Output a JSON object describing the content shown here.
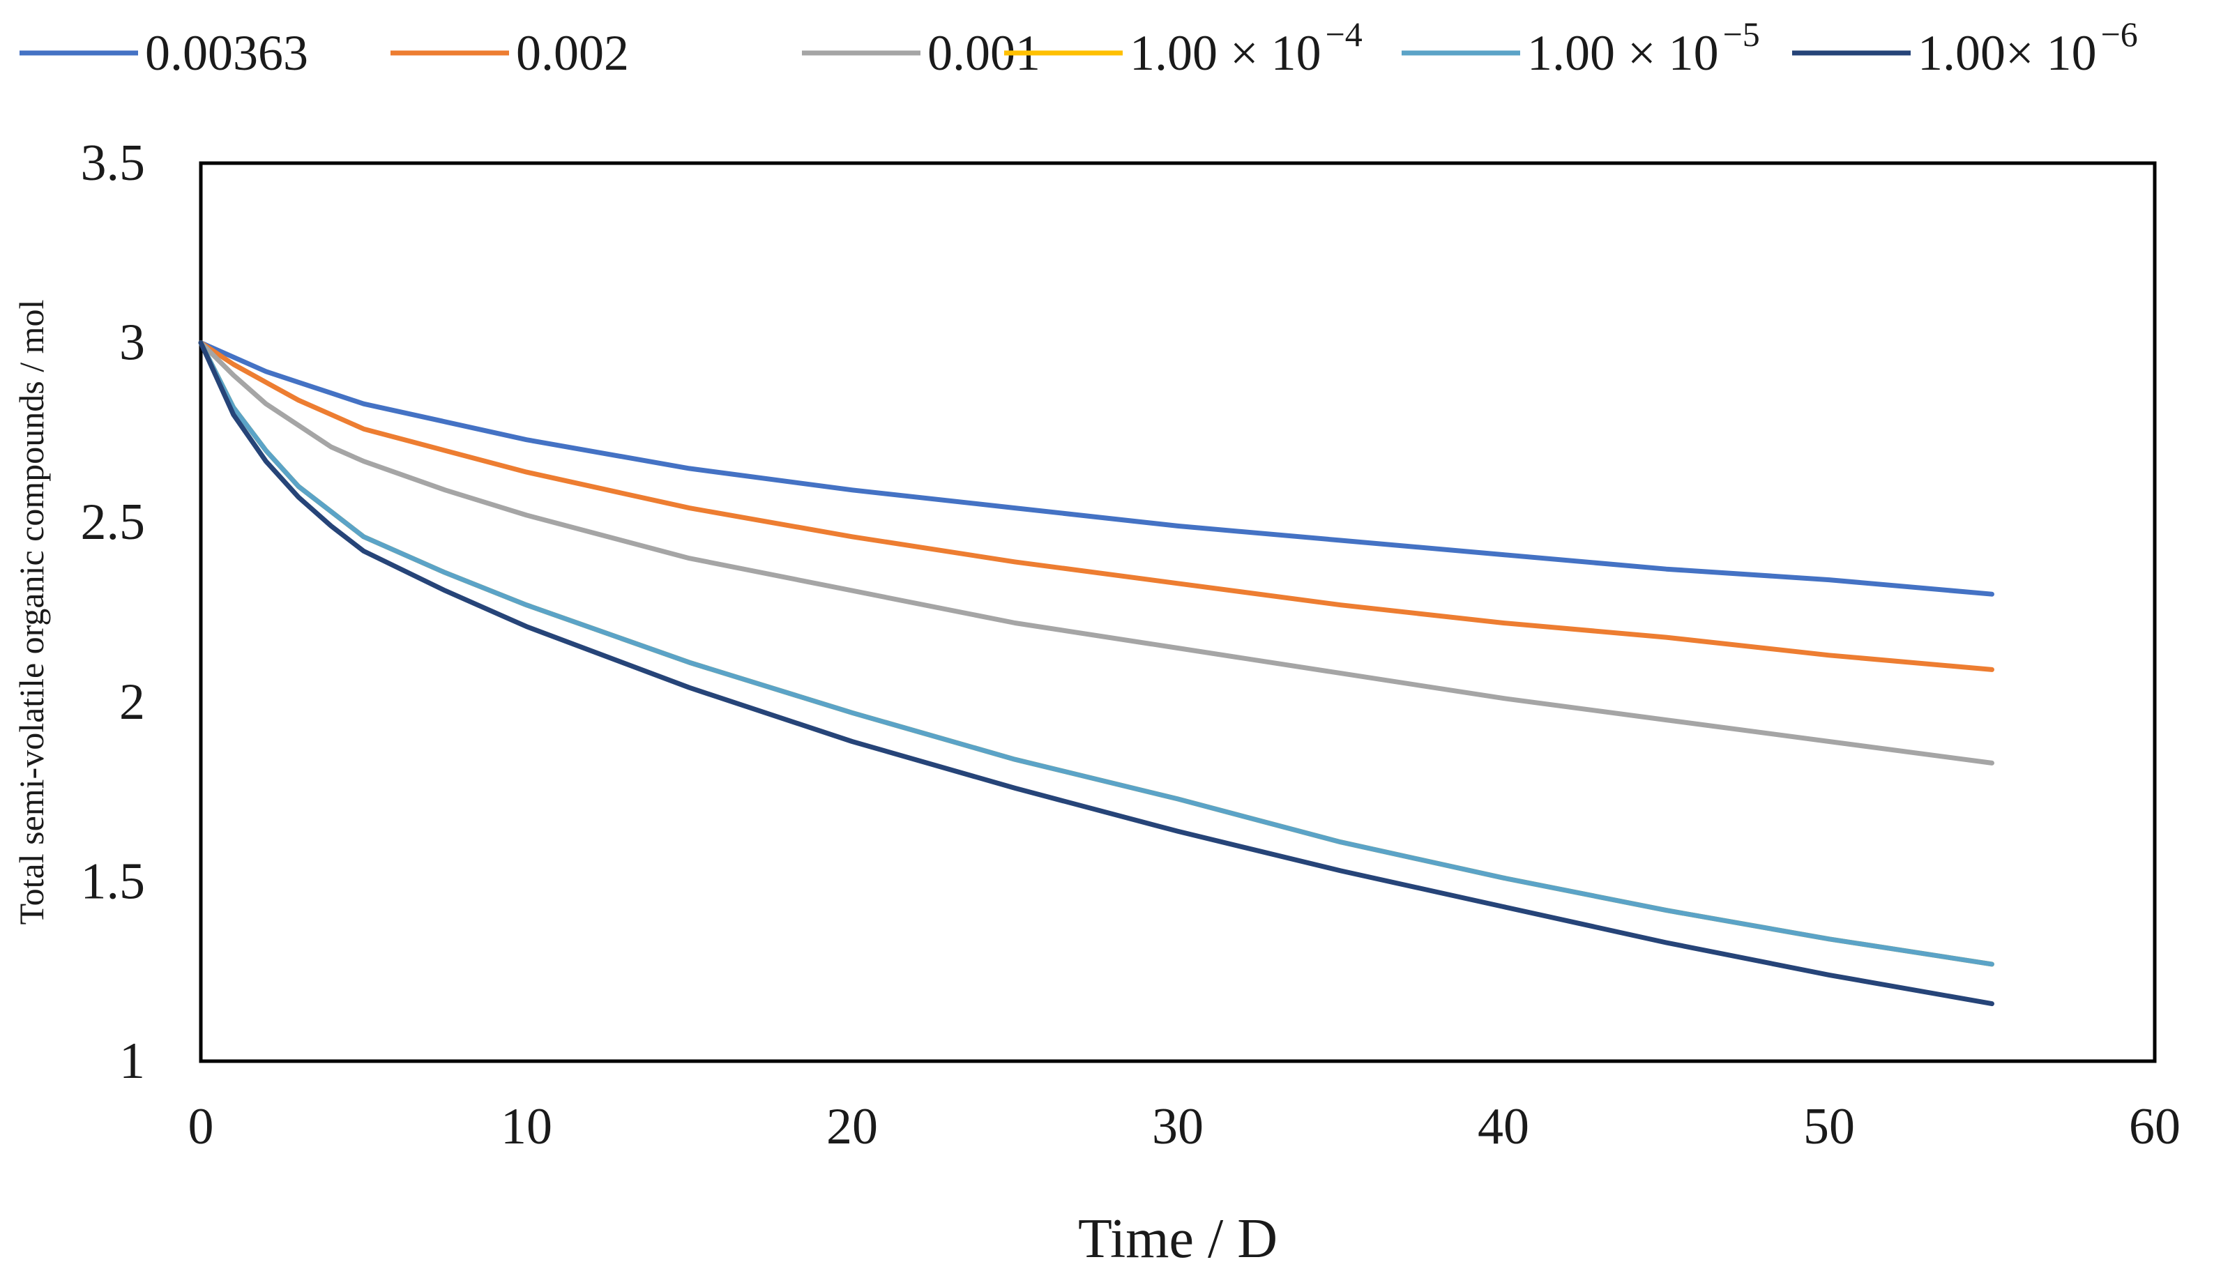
{
  "chart_data": {
    "type": "line",
    "title": "",
    "xlabel": "Time  / D",
    "ylabel": "Total semi-volatile  organic compounds / mol",
    "xlim": [
      0,
      60
    ],
    "ylim": [
      1,
      3.5
    ],
    "xticks": [
      "0",
      "10",
      "20",
      "30",
      "40",
      "50",
      "60"
    ],
    "yticks": [
      "1",
      "1.5",
      "2",
      "2.5",
      "3",
      "3.5"
    ],
    "xtick_values": [
      0,
      10,
      20,
      30,
      40,
      50,
      60
    ],
    "ytick_values": [
      1,
      1.5,
      2,
      2.5,
      3,
      3.5
    ],
    "grid": false,
    "legend_position": "top",
    "x": [
      0,
      1,
      2,
      3,
      4,
      5,
      7.5,
      10,
      15,
      20,
      25,
      30,
      35,
      40,
      45,
      50,
      55
    ],
    "series": [
      {
        "name": "0.00363",
        "legend_base": "0.00363",
        "legend_exp": "",
        "color": "#4472C4",
        "values": [
          3.0,
          2.96,
          2.92,
          2.89,
          2.86,
          2.83,
          2.78,
          2.73,
          2.65,
          2.59,
          2.54,
          2.49,
          2.45,
          2.41,
          2.37,
          2.34,
          2.3
        ]
      },
      {
        "name": "0.002",
        "legend_base": "0.002",
        "legend_exp": "",
        "color": "#ED7D31",
        "values": [
          3.0,
          2.94,
          2.89,
          2.84,
          2.8,
          2.76,
          2.7,
          2.64,
          2.54,
          2.46,
          2.39,
          2.33,
          2.27,
          2.22,
          2.18,
          2.13,
          2.09
        ]
      },
      {
        "name": "0.001",
        "legend_base": "0.001",
        "legend_exp": "",
        "color": "#A5A5A5",
        "values": [
          3.0,
          2.91,
          2.83,
          2.77,
          2.71,
          2.67,
          2.59,
          2.52,
          2.4,
          2.31,
          2.22,
          2.15,
          2.08,
          2.01,
          1.95,
          1.89,
          1.83
        ]
      },
      {
        "name": "1.00 × 10^-4",
        "legend_base": "1.00 × 10",
        "legend_exp": "−4",
        "color": "#FFC000",
        "values": [
          3.0,
          2.82,
          2.7,
          2.6,
          2.53,
          2.46,
          2.36,
          2.27,
          2.11,
          1.97,
          1.84,
          1.73,
          1.61,
          1.51,
          1.42,
          1.34,
          1.27
        ]
      },
      {
        "name": "1.00 × 10^-5",
        "legend_base": "1.00 × 10",
        "legend_exp": "−5",
        "color": "#5BA3C7",
        "values": [
          3.0,
          2.82,
          2.7,
          2.6,
          2.53,
          2.46,
          2.36,
          2.27,
          2.11,
          1.97,
          1.84,
          1.73,
          1.61,
          1.51,
          1.42,
          1.34,
          1.27
        ]
      },
      {
        "name": "1.00 × 10^-6",
        "legend_base": "1.00× 10",
        "legend_exp": "−6",
        "color": "#264478",
        "values": [
          3.0,
          2.8,
          2.67,
          2.57,
          2.49,
          2.42,
          2.31,
          2.21,
          2.04,
          1.89,
          1.76,
          1.64,
          1.53,
          1.43,
          1.33,
          1.24,
          1.16
        ]
      }
    ]
  }
}
